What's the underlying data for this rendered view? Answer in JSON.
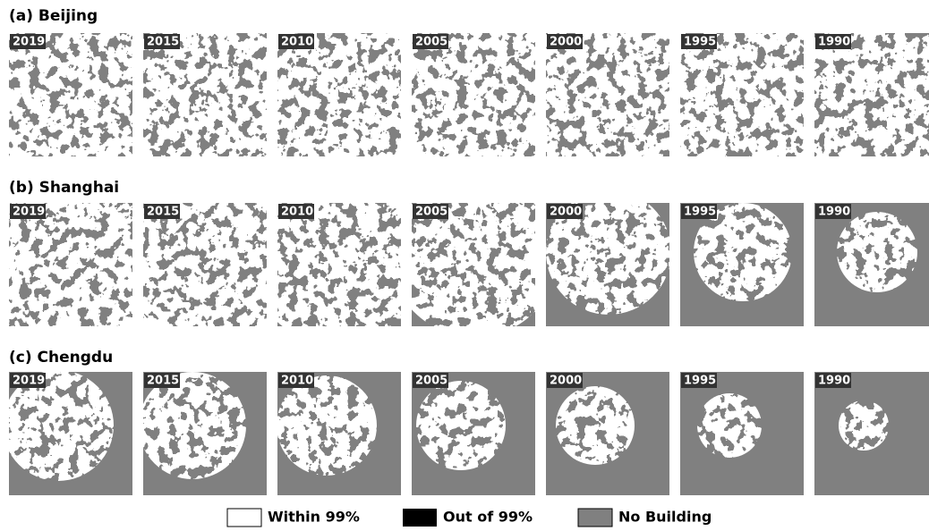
{
  "panels": [
    {
      "title": "(a) Beijing",
      "years": [
        "2019",
        "2015",
        "2010",
        "2005",
        "2000",
        "1995",
        "1990"
      ]
    },
    {
      "title": "(b) Shanghai",
      "years": [
        "2019",
        "2015",
        "2010",
        "2005",
        "2000",
        "1995",
        "1990"
      ]
    },
    {
      "title": "(c) Chengdu",
      "years": [
        "2019",
        "2015",
        "2010",
        "2005",
        "2000",
        "1995",
        "1990"
      ]
    }
  ],
  "legend": [
    "Within 99%",
    "Out of 99%",
    "No Building"
  ]
}
